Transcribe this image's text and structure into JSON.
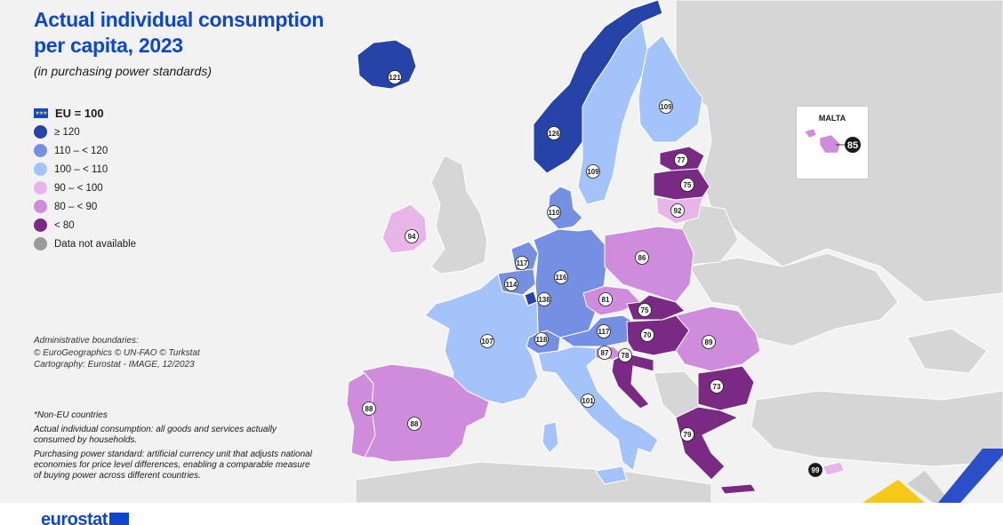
{
  "header": {
    "title_line1": "Actual individual consumption",
    "title_line2": "per capita, 2023",
    "subtitle": "(in purchasing power standards)"
  },
  "legend": {
    "eu_label": "EU = 100",
    "items": [
      {
        "label": "≥ 120",
        "color": "#2644a8"
      },
      {
        "label": "110 – < 120",
        "color": "#7590e3"
      },
      {
        "label": "100 – < 110",
        "color": "#a5c3fb"
      },
      {
        "label": "90 – < 100",
        "color": "#e8b5e9"
      },
      {
        "label": "80 – < 90",
        "color": "#cf8cdc"
      },
      {
        "label": "< 80",
        "color": "#7b2a84"
      },
      {
        "label": "Data not available",
        "color": "#9a9a9a"
      }
    ]
  },
  "admin": {
    "line1": "Administrative boundaries:",
    "line2": "© EuroGeographics © UN-FAO © Turkstat",
    "line3": "Cartography: Eurostat - IMAGE, 12/2023"
  },
  "notes": {
    "non_eu": "*Non-EU countries",
    "aic": "Actual individual consumption: all goods and services actually consumed by households.",
    "pps": "Purchasing power standard: artificial currency unit that adjusts national economies for price level differences, enabling a comparable measure of buying power across different countries."
  },
  "malta": {
    "label": "MALTA",
    "value": "85"
  },
  "logo": {
    "text": "eurostat"
  },
  "countries": [
    {
      "id": "IS",
      "value": "121",
      "color": "#2644a8"
    },
    {
      "id": "NO",
      "value": "126",
      "color": "#2644a8"
    },
    {
      "id": "SE",
      "value": "109",
      "color": "#a5c3fb"
    },
    {
      "id": "FI",
      "value": "109",
      "color": "#a5c3fb"
    },
    {
      "id": "EE",
      "value": "77",
      "color": "#7b2a84"
    },
    {
      "id": "LV",
      "value": "75",
      "color": "#7b2a84"
    },
    {
      "id": "LT",
      "value": "92",
      "color": "#e8b5e9"
    },
    {
      "id": "DK",
      "value": "110",
      "color": "#7590e3"
    },
    {
      "id": "IE",
      "value": "94",
      "color": "#e8b5e9"
    },
    {
      "id": "NL",
      "value": "117",
      "color": "#7590e3"
    },
    {
      "id": "BE",
      "value": "114",
      "color": "#7590e3"
    },
    {
      "id": "LU",
      "value": "138",
      "color": "#2644a8"
    },
    {
      "id": "DE",
      "value": "116",
      "color": "#7590e3"
    },
    {
      "id": "PL",
      "value": "86",
      "color": "#cf8cdc"
    },
    {
      "id": "CZ",
      "value": "81",
      "color": "#cf8cdc"
    },
    {
      "id": "SK",
      "value": "75",
      "color": "#7b2a84"
    },
    {
      "id": "AT",
      "value": "117",
      "color": "#7590e3"
    },
    {
      "id": "CH",
      "value": "118",
      "color": "#7590e3"
    },
    {
      "id": "HU",
      "value": "70",
      "color": "#7b2a84"
    },
    {
      "id": "SI",
      "value": "87",
      "color": "#cf8cdc"
    },
    {
      "id": "HR",
      "value": "78",
      "color": "#7b2a84"
    },
    {
      "id": "RO",
      "value": "89",
      "color": "#cf8cdc"
    },
    {
      "id": "BG",
      "value": "73",
      "color": "#7b2a84"
    },
    {
      "id": "FR",
      "value": "107",
      "color": "#a5c3fb"
    },
    {
      "id": "IT",
      "value": "101",
      "color": "#a5c3fb"
    },
    {
      "id": "PT",
      "value": "88",
      "color": "#cf8cdc"
    },
    {
      "id": "ES",
      "value": "88",
      "color": "#cf8cdc"
    },
    {
      "id": "EL",
      "value": "79",
      "color": "#7b2a84"
    },
    {
      "id": "CY",
      "value": "99",
      "color": "#e8b5e9"
    }
  ]
}
